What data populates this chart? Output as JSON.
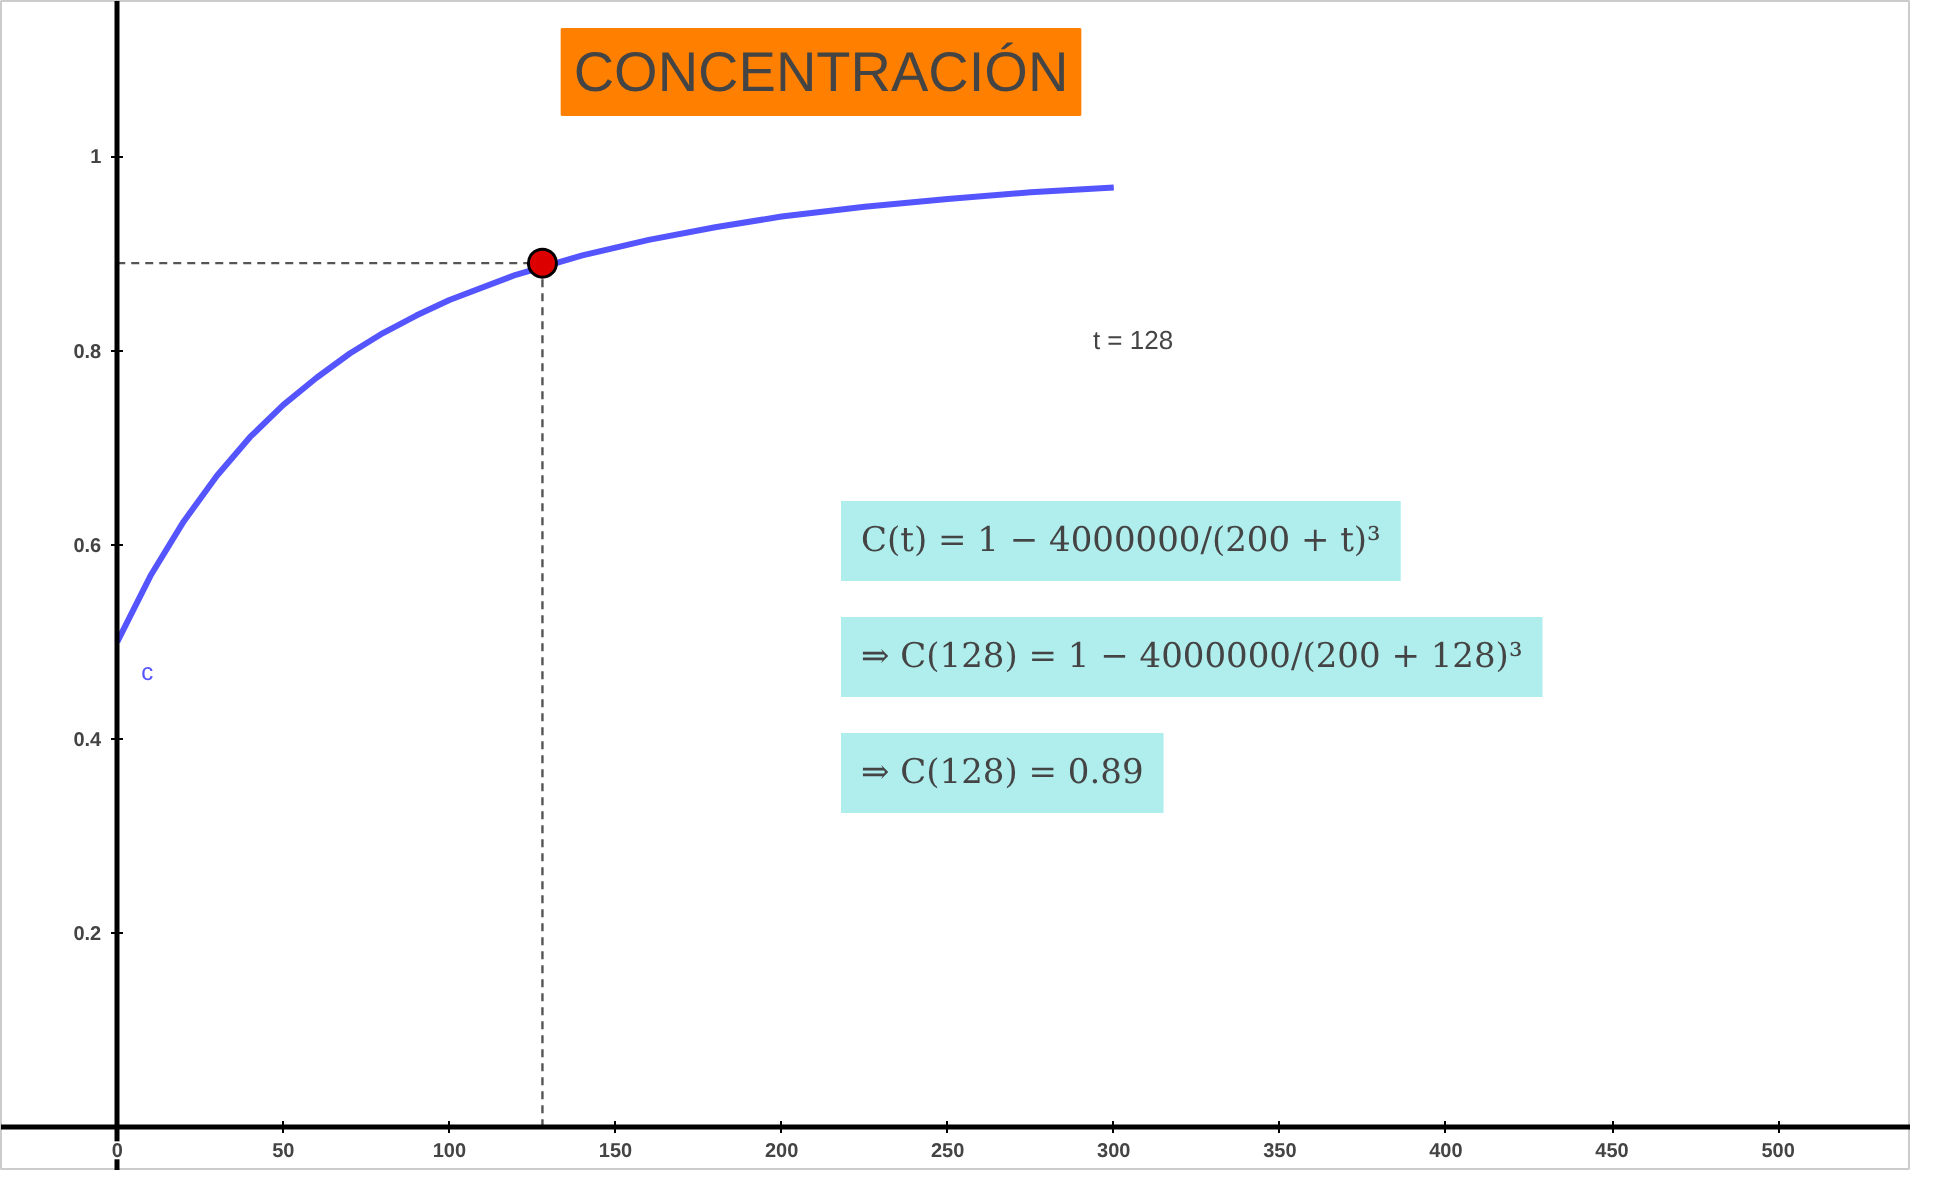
{
  "chart_data": {
    "type": "line",
    "title": "CONCENTRACIÓN",
    "xlim": [
      -35,
      540
    ],
    "ylim": [
      -0.045,
      1.16
    ],
    "xticks": [
      0,
      50,
      100,
      150,
      200,
      250,
      300,
      350,
      400,
      450,
      500
    ],
    "yticks": [
      0.2,
      0.4,
      0.6,
      0.8,
      1
    ],
    "grid": false,
    "series": [
      {
        "name": "c",
        "color": "#5555ff",
        "line_style": "solid",
        "x": [
          0,
          10,
          20,
          30,
          40,
          50,
          60,
          70,
          80,
          90,
          100,
          120,
          140,
          160,
          180,
          200,
          225,
          250,
          275,
          300
        ],
        "values": [
          0.5,
          0.568,
          0.624,
          0.671,
          0.711,
          0.744,
          0.772,
          0.797,
          0.818,
          0.836,
          0.852,
          0.878,
          0.898,
          0.914,
          0.927,
          0.938,
          0.948,
          0.956,
          0.963,
          0.968
        ]
      },
      {
        "type": "line",
        "color": "#555555",
        "line_style": "dashed",
        "x": [
          0,
          128
        ],
        "values": [
          0.89,
          0.89
        ]
      },
      {
        "type": "line",
        "color": "#555555",
        "line_style": "dashed",
        "x": [
          128,
          128
        ],
        "values": [
          0,
          0.89
        ]
      },
      {
        "type": "scatter",
        "color": "#dd0000",
        "marker": "circle",
        "x": [
          128
        ],
        "values": [
          0.89
        ]
      }
    ],
    "annotations": [
      "t = 128",
      "C(t) = 1 − 4000000/(200 + t)³",
      "⇒ C(128) = 1 − 4000000/(200 + 128)³",
      "⇒ C(128) = 0.89"
    ]
  }
}
